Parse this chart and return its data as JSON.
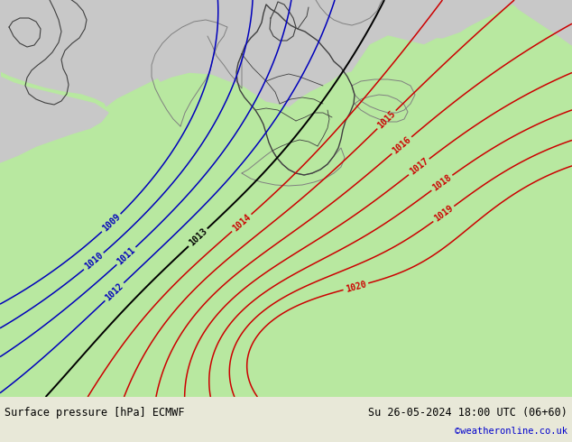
{
  "title_left": "Surface pressure [hPa] ECMWF",
  "title_right": "Su 26-05-2024 18:00 UTC (06+60)",
  "copyright": "©weatheronline.co.uk",
  "copyright_color": "#0000cc",
  "fig_width": 6.34,
  "fig_height": 4.9,
  "dpi": 100,
  "bg_color": "#c8c8c8",
  "land_color": "#b8e8a0",
  "red_color": "#cc0000",
  "blue_color": "#0000bb",
  "black_color": "#000000",
  "border_color": "#404040",
  "gray_border_color": "#808080",
  "bottom_bar_color": "#e8e8d8",
  "font_size_bottom": 8.5
}
